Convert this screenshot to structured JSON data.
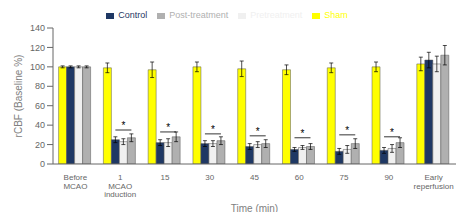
{
  "chart_data": {
    "type": "bar",
    "categories": [
      "Before\nMCAO",
      "1\nMCAO\ninduction",
      "15",
      "30",
      "45",
      "60",
      "75",
      "90",
      "Early\nreperfusion"
    ],
    "xlabel": "Time (min)",
    "ylabel": "rCBF (Baseline %)",
    "ylim": [
      0,
      140
    ],
    "yticks": [
      0,
      20,
      40,
      60,
      80,
      100,
      120,
      140
    ],
    "grid": false,
    "legend": "top",
    "series": [
      {
        "name": "Sham",
        "color": "#ffff00",
        "values": [
          100,
          99,
          97,
          100,
          98,
          97,
          99,
          100,
          103
        ],
        "errors": [
          1,
          5,
          8,
          5,
          8,
          5,
          5,
          5,
          7
        ]
      },
      {
        "name": "Control",
        "color": "#1f3864",
        "values": [
          100,
          25,
          22,
          21,
          18,
          15,
          13,
          14,
          107
        ],
        "errors": [
          1,
          3,
          3,
          3,
          3,
          2,
          3,
          3,
          8
        ]
      },
      {
        "name": "Pretreatment",
        "color": "#f0f0f0",
        "values": [
          100,
          23,
          22,
          21,
          20,
          17,
          15,
          16,
          103
        ],
        "errors": [
          1,
          3,
          4,
          3,
          3,
          2,
          4,
          4,
          8
        ]
      },
      {
        "name": "Post-treatment",
        "color": "#b0b0b0",
        "values": [
          100,
          27,
          28,
          24,
          21,
          18,
          21,
          22,
          112
        ],
        "errors": [
          1,
          4,
          5,
          4,
          4,
          3,
          5,
          5,
          10
        ]
      }
    ],
    "annotations": [
      {
        "text": "*",
        "category": "1\nMCAO\ninduction",
        "y": 35,
        "from": "Control",
        "to": "Post-treatment"
      },
      {
        "text": "*",
        "category": "15",
        "y": 33,
        "from": "Control",
        "to": "Post-treatment"
      },
      {
        "text": "*",
        "category": "30",
        "y": 31,
        "from": "Control",
        "to": "Post-treatment"
      },
      {
        "text": "*",
        "category": "45",
        "y": 29,
        "from": "Control",
        "to": "Post-treatment"
      },
      {
        "text": "*",
        "category": "60",
        "y": 27,
        "from": "Control",
        "to": "Post-treatment"
      },
      {
        "text": "*",
        "category": "75",
        "y": 30,
        "from": "Control",
        "to": "Post-treatment"
      },
      {
        "text": "*",
        "category": "90",
        "y": 28,
        "from": "Control",
        "to": "Post-treatment"
      }
    ]
  }
}
